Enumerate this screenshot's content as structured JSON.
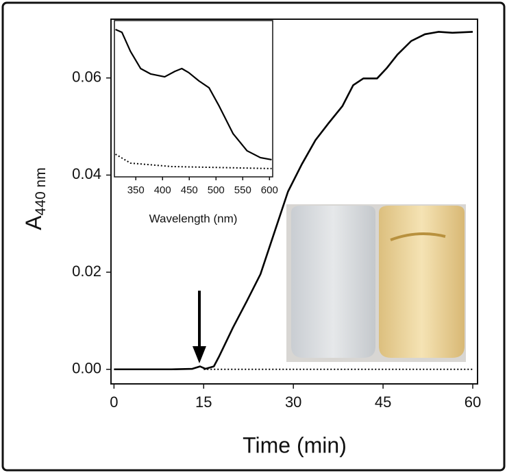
{
  "chart_data": [
    {
      "type": "line",
      "x_label": "Time (min)",
      "y_label": "A",
      "y_label_subscript": "440 nm",
      "xlim": [
        -0.5,
        60.8
      ],
      "ylim": [
        -0.003,
        0.0721
      ],
      "xticks": [
        0,
        15,
        30,
        45,
        60
      ],
      "yticks": [
        {
          "value": 0,
          "label": "0.00"
        },
        0.02,
        0.04,
        0.06
      ],
      "series": [
        {
          "style": "solid",
          "color": "#000000",
          "x": [
            0,
            5,
            9.6,
            13.1,
            14.4,
            15.3,
            16.7,
            17.6,
            19.9,
            22.2,
            24.5,
            26.8,
            29.1,
            31.4,
            33.7,
            35.9,
            38.2,
            40.0,
            41.7,
            44.0,
            45.6,
            47.4,
            49.7,
            52.0,
            54.3,
            56.6,
            60
          ],
          "values": [
            0,
            0,
            0,
            0.0001,
            0.0006,
            0.0001,
            0.0006,
            0.0027,
            0.0086,
            0.014,
            0.0196,
            0.0281,
            0.0366,
            0.0422,
            0.0472,
            0.0507,
            0.0542,
            0.0585,
            0.0599,
            0.0599,
            0.062,
            0.0648,
            0.0676,
            0.069,
            0.0695,
            0.0693,
            0.0695
          ]
        },
        {
          "style": "dotted",
          "color": "#000000",
          "x": [
            15,
            60
          ],
          "values": [
            0,
            0
          ]
        }
      ]
    },
    {
      "type": "line",
      "x_label": "Wavelength (nm)",
      "xlim": [
        310,
        606
      ],
      "ylim": [
        0,
        1
      ],
      "xticks": [
        350,
        400,
        450,
        500,
        550,
        600
      ],
      "series": [
        {
          "style": "solid",
          "color": "#000000",
          "x": [
            312,
            324,
            340,
            359,
            378,
            404,
            423,
            436,
            449,
            468,
            487,
            506,
            532,
            558,
            583,
            604
          ],
          "values": [
            0.943,
            0.925,
            0.803,
            0.693,
            0.658,
            0.64,
            0.675,
            0.693,
            0.667,
            0.614,
            0.57,
            0.452,
            0.276,
            0.167,
            0.123,
            0.11
          ]
        },
        {
          "style": "dotted",
          "color": "#000000",
          "x": [
            312,
            340,
            417,
            604
          ],
          "values": [
            0.145,
            0.088,
            0.066,
            0.053
          ]
        }
      ]
    }
  ]
}
